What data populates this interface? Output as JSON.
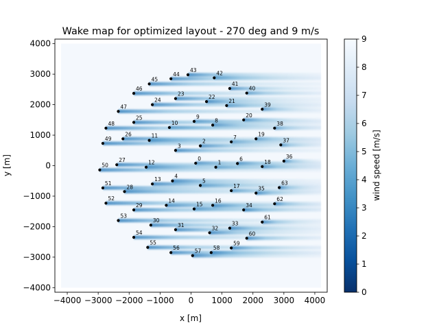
{
  "chart_data": {
    "type": "heatmap",
    "title": "Wake map for optimized layout -  270 deg and 9 m/s",
    "xlabel": "x [m]",
    "ylabel": "y [m]",
    "xlim": [
      -4400,
      4400
    ],
    "ylim": [
      -4150,
      4150
    ],
    "xticks": [
      -4000,
      -3000,
      -2000,
      -1000,
      0,
      1000,
      2000,
      3000,
      4000
    ],
    "xtick_labels": [
      "−4000",
      "−3000",
      "−2000",
      "−1000",
      "0",
      "1000",
      "2000",
      "3000",
      "4000"
    ],
    "yticks": [
      -4000,
      -3000,
      -2000,
      -1000,
      0,
      1000,
      2000,
      3000,
      4000
    ],
    "ytick_labels": [
      "−4000",
      "−3000",
      "−2000",
      "−1000",
      "0",
      "1000",
      "2000",
      "3000",
      "4000"
    ],
    "field_extent": {
      "x": [
        -4200,
        4200
      ],
      "y": [
        -4000,
        4000
      ]
    },
    "colorbar": {
      "label": "wind speed [m/s]",
      "range": [
        0,
        9
      ],
      "ticks": [
        0,
        1,
        2,
        3,
        4,
        5,
        6,
        7,
        8,
        9
      ],
      "tick_labels": [
        "0",
        "1",
        "2",
        "3",
        "4",
        "5",
        "6",
        "7",
        "8",
        "9"
      ],
      "colormap": "Blues_r",
      "low_color": "#08306b",
      "high_color": "#f7fbff"
    },
    "wind_direction_deg": 270,
    "wind_speed_ms": 9,
    "turbines": [
      {
        "id": "0",
        "x": 150,
        "y": 80
      },
      {
        "id": "1",
        "x": 800,
        "y": -50
      },
      {
        "id": "2",
        "x": 300,
        "y": 650
      },
      {
        "id": "3",
        "x": -500,
        "y": 500
      },
      {
        "id": "4",
        "x": -600,
        "y": -500
      },
      {
        "id": "5",
        "x": 300,
        "y": -650
      },
      {
        "id": "6",
        "x": 1500,
        "y": 70
      },
      {
        "id": "7",
        "x": 1300,
        "y": 780
      },
      {
        "id": "8",
        "x": 700,
        "y": 1330
      },
      {
        "id": "9",
        "x": 100,
        "y": 1450
      },
      {
        "id": "10",
        "x": -700,
        "y": 1250
      },
      {
        "id": "11",
        "x": -1350,
        "y": 830
      },
      {
        "id": "12",
        "x": -1450,
        "y": -50
      },
      {
        "id": "13",
        "x": -1250,
        "y": -600
      },
      {
        "id": "14",
        "x": -800,
        "y": -1300
      },
      {
        "id": "15",
        "x": 100,
        "y": -1420
      },
      {
        "id": "16",
        "x": 700,
        "y": -1300
      },
      {
        "id": "17",
        "x": 1300,
        "y": -820
      },
      {
        "id": "18",
        "x": 2300,
        "y": -30
      },
      {
        "id": "19",
        "x": 2100,
        "y": 880
      },
      {
        "id": "20",
        "x": 1700,
        "y": 1500
      },
      {
        "id": "21",
        "x": 1150,
        "y": 1970
      },
      {
        "id": "22",
        "x": 500,
        "y": 2100
      },
      {
        "id": "23",
        "x": -500,
        "y": 2200
      },
      {
        "id": "24",
        "x": -1250,
        "y": 2000
      },
      {
        "id": "25",
        "x": -1850,
        "y": 1420
      },
      {
        "id": "26",
        "x": -2200,
        "y": 880
      },
      {
        "id": "27",
        "x": -2400,
        "y": 30
      },
      {
        "id": "28",
        "x": -2150,
        "y": -850
      },
      {
        "id": "29",
        "x": -1850,
        "y": -1450
      },
      {
        "id": "30",
        "x": -1300,
        "y": -1950
      },
      {
        "id": "31",
        "x": -500,
        "y": -2100
      },
      {
        "id": "32",
        "x": 600,
        "y": -2200
      },
      {
        "id": "33",
        "x": 1250,
        "y": -2050
      },
      {
        "id": "34",
        "x": 1700,
        "y": -1450
      },
      {
        "id": "35",
        "x": 2100,
        "y": -900
      },
      {
        "id": "36",
        "x": 3000,
        "y": 150
      },
      {
        "id": "37",
        "x": 2900,
        "y": 680
      },
      {
        "id": "38",
        "x": 2700,
        "y": 1230
      },
      {
        "id": "39",
        "x": 2300,
        "y": 1850
      },
      {
        "id": "40",
        "x": 1800,
        "y": 2380
      },
      {
        "id": "41",
        "x": 1250,
        "y": 2530
      },
      {
        "id": "42",
        "x": 750,
        "y": 2880
      },
      {
        "id": "43",
        "x": -100,
        "y": 2980
      },
      {
        "id": "44",
        "x": -650,
        "y": 2850
      },
      {
        "id": "45",
        "x": -1350,
        "y": 2680
      },
      {
        "id": "46",
        "x": -1850,
        "y": 2370
      },
      {
        "id": "47",
        "x": -2350,
        "y": 1780
      },
      {
        "id": "48",
        "x": -2750,
        "y": 1230
      },
      {
        "id": "49",
        "x": -2850,
        "y": 730
      },
      {
        "id": "50",
        "x": -2950,
        "y": -140
      },
      {
        "id": "51",
        "x": -2850,
        "y": -730
      },
      {
        "id": "52",
        "x": -2750,
        "y": -1230
      },
      {
        "id": "53",
        "x": -2350,
        "y": -1800
      },
      {
        "id": "54",
        "x": -1850,
        "y": -2350
      },
      {
        "id": "55",
        "x": -1400,
        "y": -2680
      },
      {
        "id": "56",
        "x": -650,
        "y": -2850
      },
      {
        "id": "57",
        "x": 50,
        "y": -2950
      },
      {
        "id": "58",
        "x": 650,
        "y": -2850
      },
      {
        "id": "59",
        "x": 1300,
        "y": -2700
      },
      {
        "id": "60",
        "x": 1800,
        "y": -2380
      },
      {
        "id": "61",
        "x": 2300,
        "y": -1850
      },
      {
        "id": "62",
        "x": 2700,
        "y": -1250
      },
      {
        "id": "63",
        "x": 2850,
        "y": -720
      }
    ]
  }
}
